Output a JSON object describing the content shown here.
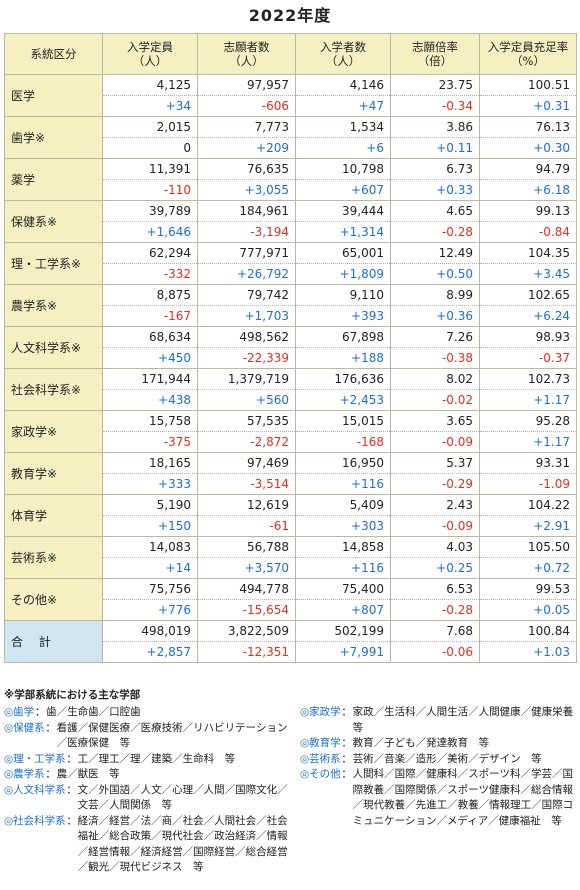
{
  "title": "2022年度",
  "headers": [
    "系統区分",
    "入学定員\n（人）",
    "志願者数\n（人）",
    "入学者数\n（人）",
    "志願倍率\n（倍）",
    "入学定員充足率\n（%）"
  ],
  "rows": [
    {
      "cat": "医学",
      "vals": [
        "4,125",
        "97,957",
        "4,146",
        "23.75",
        "100.51"
      ],
      "diffs": [
        "+34",
        "-606",
        "+47",
        "-0.34",
        "+0.31"
      ]
    },
    {
      "cat": "歯学※",
      "vals": [
        "2,015",
        "7,773",
        "1,534",
        "3.86",
        "76.13"
      ],
      "diffs": [
        "0",
        "+209",
        "+6",
        "+0.11",
        "+0.30"
      ]
    },
    {
      "cat": "薬学",
      "vals": [
        "11,391",
        "76,635",
        "10,798",
        "6.73",
        "94.79"
      ],
      "diffs": [
        "-110",
        "+3,055",
        "+607",
        "+0.33",
        "+6.18"
      ]
    },
    {
      "cat": "保健系※",
      "vals": [
        "39,789",
        "184,961",
        "39,444",
        "4.65",
        "99.13"
      ],
      "diffs": [
        "+1,646",
        "-3,194",
        "+1,314",
        "-0.28",
        "-0.84"
      ]
    },
    {
      "cat": "理・工学系※",
      "vals": [
        "62,294",
        "777,971",
        "65,001",
        "12.49",
        "104.35"
      ],
      "diffs": [
        "-332",
        "+26,792",
        "+1,809",
        "+0.50",
        "+3.45"
      ]
    },
    {
      "cat": "農学系※",
      "vals": [
        "8,875",
        "79,742",
        "9,110",
        "8.99",
        "102.65"
      ],
      "diffs": [
        "-167",
        "+1,703",
        "+393",
        "+0.36",
        "+6.24"
      ]
    },
    {
      "cat": "人文科学系※",
      "vals": [
        "68,634",
        "498,562",
        "67,898",
        "7.26",
        "98.93"
      ],
      "diffs": [
        "+450",
        "-22,339",
        "+188",
        "-0.38",
        "-0.37"
      ]
    },
    {
      "cat": "社会科学系※",
      "vals": [
        "171,944",
        "1,379,719",
        "176,636",
        "8.02",
        "102.73"
      ],
      "diffs": [
        "+438",
        "+560",
        "+2,453",
        "-0.02",
        "+1.17"
      ]
    },
    {
      "cat": "家政学※",
      "vals": [
        "15,758",
        "57,535",
        "15,015",
        "3.65",
        "95.28"
      ],
      "diffs": [
        "-375",
        "-2,872",
        "-168",
        "-0.09",
        "+1.17"
      ]
    },
    {
      "cat": "教育学※",
      "vals": [
        "18,165",
        "97,469",
        "16,950",
        "5.37",
        "93.31"
      ],
      "diffs": [
        "+333",
        "-3,514",
        "+116",
        "-0.29",
        "-1.09"
      ]
    },
    {
      "cat": "体育学",
      "vals": [
        "5,190",
        "12,619",
        "5,409",
        "2.43",
        "104.22"
      ],
      "diffs": [
        "+150",
        "-61",
        "+303",
        "-0.09",
        "+2.91"
      ]
    },
    {
      "cat": "芸術系※",
      "vals": [
        "14,083",
        "56,788",
        "14,858",
        "4.03",
        "105.50"
      ],
      "diffs": [
        "+14",
        "+3,570",
        "+116",
        "+0.25",
        "+0.72"
      ]
    },
    {
      "cat": "その他※",
      "vals": [
        "75,756",
        "494,778",
        "75,400",
        "6.53",
        "99.53"
      ],
      "diffs": [
        "+776",
        "-15,654",
        "+807",
        "-0.28",
        "+0.05"
      ]
    }
  ],
  "total": {
    "cat": "合 計",
    "vals": [
      "498,019",
      "3,822,509",
      "502,199",
      "7.68",
      "100.84"
    ],
    "diffs": [
      "+2,857",
      "-12,351",
      "+7,991",
      "-0.06",
      "+1.03"
    ]
  },
  "notes": {
    "heading": "※学部系統における主な学部",
    "left": [
      {
        "key": "◎歯学",
        "text": "歯／生命歯／口腔歯"
      },
      {
        "key": "◎保健系",
        "text": "看護／保健医療／医療技術／リハビリテーション／医療保健　等"
      },
      {
        "key": "◎理・工学系",
        "text": "工／理工／理／建築／生命科　等"
      },
      {
        "key": "◎農学系",
        "text": "農／獣医　等"
      },
      {
        "key": "◎人文科学系",
        "text": "文／外国語／人文／心理／人間／国際文化／文芸／人間関係　等"
      },
      {
        "key": "◎社会科学系",
        "text": "経済／経営／法／商／社会／人間社会／社会福祉／総合政策／現代社会／政治経済／情報／経営情報／経済経営／国際経営／総合経営／観光／現代ビジネス　等"
      }
    ],
    "right": [
      {
        "key": "◎家政学",
        "text": "家政／生活科／人間生活／人間健康／健康栄養　等"
      },
      {
        "key": "◎教育学",
        "text": "教育／子ども／発達教育　等"
      },
      {
        "key": "◎芸術系",
        "text": "芸術／音楽／造形／美術／デザイン　等"
      },
      {
        "key": "◎その他",
        "text": "人間科／国際／健康科／スポーツ科／学芸／国際教養／国際関係／スポーツ健康科／総合情報／現代教養／先進工／教養／情報理工／国際コミュニケーション／メディア／健康福祉　等"
      }
    ]
  }
}
